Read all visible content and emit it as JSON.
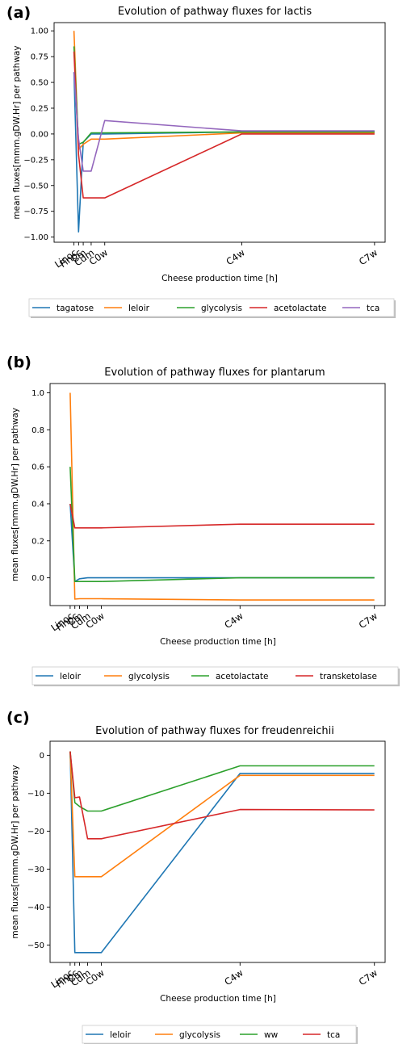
{
  "chart_data": [
    {
      "type": "line",
      "panel": "(a)",
      "title": "Evolution of pathway fluxes for lactis",
      "xlabel": "Cheese production time [h]",
      "ylabel": "mean fluxes[mmm.gDW.Hr] per pathway",
      "xtick_labels": [
        "Linoc",
        "Finoc",
        "Cm",
        "Cdm",
        "C0w",
        "C4w",
        "C7w"
      ],
      "x": [
        0,
        4,
        8,
        16,
        32,
        704,
        1208
      ],
      "ylim": [
        -1.05,
        1.08
      ],
      "yticks": [
        -1.0,
        -0.75,
        -0.5,
        -0.25,
        0.0,
        0.25,
        0.5,
        0.75,
        1.0
      ],
      "ytick_labels": [
        "−1.00",
        "−0.75",
        "−0.50",
        "−0.25",
        "0.00",
        "0.25",
        "0.50",
        "0.75",
        "1.00"
      ],
      "legend": "below",
      "series": [
        {
          "name": "tagatose",
          "color": "#1f77b4",
          "values": [
            0.6,
            -0.95,
            -0.08,
            0.0,
            0.0,
            0.02,
            0.02
          ]
        },
        {
          "name": "leloir",
          "color": "#ff7f0e",
          "values": [
            1.0,
            -0.15,
            -0.1,
            -0.05,
            -0.05,
            0.01,
            0.01
          ]
        },
        {
          "name": "glycolysis",
          "color": "#2ca02c",
          "values": [
            0.85,
            -0.1,
            -0.08,
            0.01,
            0.01,
            0.02,
            0.02
          ]
        },
        {
          "name": "acetolactate",
          "color": "#d62728",
          "values": [
            0.8,
            -0.2,
            -0.62,
            -0.62,
            -0.62,
            0.0,
            0.0
          ]
        },
        {
          "name": "tca",
          "color": "#9467bd",
          "values": [
            0.6,
            -0.05,
            -0.36,
            -0.36,
            0.13,
            0.03,
            0.03
          ]
        }
      ]
    },
    {
      "type": "line",
      "panel": "(b)",
      "title": "Evolution of pathway fluxes for plantarum",
      "xlabel": "Cheese production time [h]",
      "ylabel": "mean fluxes[mmm.gDW.Hr] per pathway",
      "xtick_labels": [
        "Linoc",
        "Finoc",
        "Cm",
        "Cdm",
        "C0w",
        "C4w",
        "C7w"
      ],
      "x": [
        0,
        4,
        8,
        16,
        32,
        704,
        1208
      ],
      "ylim": [
        -0.15,
        1.05
      ],
      "yticks": [
        0.0,
        0.2,
        0.4,
        0.6,
        0.8,
        1.0
      ],
      "ytick_labels": [
        "0.0",
        "0.2",
        "0.4",
        "0.6",
        "0.8",
        "1.0"
      ],
      "legend": "below",
      "series": [
        {
          "name": "leloir",
          "color": "#1f77b4",
          "values": [
            0.4,
            -0.02,
            -0.005,
            0.0,
            0.0,
            0.0,
            0.0
          ]
        },
        {
          "name": "glycolysis",
          "color": "#ff7f0e",
          "values": [
            1.0,
            -0.115,
            -0.113,
            -0.113,
            -0.113,
            -0.12,
            -0.12
          ]
        },
        {
          "name": "acetolactate",
          "color": "#2ca02c",
          "values": [
            0.6,
            -0.02,
            -0.02,
            -0.02,
            -0.02,
            0.0,
            0.0
          ]
        },
        {
          "name": "transketolase",
          "color": "#d62728",
          "values": [
            0.4,
            0.27,
            0.27,
            0.27,
            0.27,
            0.29,
            0.29
          ]
        }
      ]
    },
    {
      "type": "line",
      "panel": "(c)",
      "title": "Evolution of pathway fluxes for freudenreichii",
      "xlabel": "Cheese production time [h]",
      "ylabel": "mean fluxes[mmm.gDW.Hr] per pathway",
      "xtick_labels": [
        "Linoc",
        "Finoc",
        "Cm",
        "Cdm",
        "C0w",
        "C4w",
        "C7w"
      ],
      "x": [
        0,
        4,
        8,
        16,
        32,
        704,
        1208
      ],
      "ylim": [
        -54.6,
        3.7
      ],
      "yticks": [
        0,
        -10,
        -20,
        -30,
        -40,
        -50
      ],
      "ytick_labels": [
        "0",
        "−10",
        "−20",
        "−30",
        "−40",
        "−50"
      ],
      "legend": "below",
      "series": [
        {
          "name": "leloir",
          "color": "#1f77b4",
          "values": [
            1.0,
            -52.0,
            -52.0,
            -52.0,
            -52.0,
            -4.8,
            -4.8
          ]
        },
        {
          "name": "glycolysis",
          "color": "#ff7f0e",
          "values": [
            1.0,
            -32.0,
            -32.0,
            -32.0,
            -32.0,
            -5.3,
            -5.3
          ]
        },
        {
          "name": "ww",
          "color": "#2ca02c",
          "values": [
            1.0,
            -12.5,
            -13.5,
            -14.7,
            -14.7,
            -2.8,
            -2.8
          ]
        },
        {
          "name": "tca",
          "color": "#d62728",
          "values": [
            1.0,
            -11.2,
            -11.0,
            -22.0,
            -22.0,
            -14.3,
            -14.4
          ]
        }
      ]
    }
  ]
}
